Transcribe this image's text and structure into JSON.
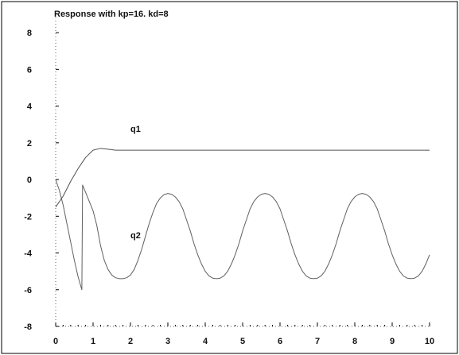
{
  "chart_data": {
    "type": "line",
    "title": "Response with kp=16. kd=8",
    "xlabel": "",
    "ylabel": "",
    "xlim": [
      0,
      10
    ],
    "ylim": [
      -8,
      9
    ],
    "x_ticks": [
      0,
      1,
      2,
      3,
      4,
      5,
      6,
      7,
      8,
      9,
      10
    ],
    "x_tick_labels": [
      "0",
      "1",
      "2",
      "3",
      "4",
      "5",
      "6",
      "7",
      "8",
      "9",
      "10"
    ],
    "y_ticks": [
      -8,
      -6,
      -4,
      -2,
      0,
      2,
      4,
      6,
      8
    ],
    "y_tick_labels": [
      "-8",
      "-6",
      "-4",
      "-2",
      "0",
      "2",
      "4",
      "6",
      "8"
    ],
    "grid": false,
    "legend": "none",
    "colors": {
      "axes": "#000000",
      "series_q1": "#333333",
      "series_q2": "#444444",
      "text": "#111111",
      "background": "#ffffff"
    },
    "series": [
      {
        "name": "q1",
        "x": [
          0,
          0.2,
          0.4,
          0.6,
          0.8,
          1.0,
          1.2,
          1.4,
          1.6,
          2.0,
          3,
          4,
          5,
          6,
          7,
          8,
          9,
          10
        ],
        "y": [
          -1.5,
          -0.9,
          -0.1,
          0.6,
          1.2,
          1.6,
          1.7,
          1.65,
          1.6,
          1.6,
          1.6,
          1.6,
          1.6,
          1.6,
          1.6,
          1.6,
          1.6,
          1.6
        ]
      },
      {
        "name": "q2",
        "x": [
          0,
          0.1,
          0.2,
          0.3,
          0.4,
          0.5,
          0.6,
          0.7,
          0.72,
          0.8,
          0.9,
          1.0,
          1.1,
          1.2,
          1.3,
          1.4,
          1.5,
          1.6,
          1.7,
          1.8,
          1.9,
          2.0,
          2.1,
          2.2,
          2.3,
          2.4,
          2.5,
          2.6,
          2.7,
          2.8,
          2.9,
          3.0,
          3.1,
          3.2,
          3.3,
          3.4,
          3.5,
          3.6,
          3.7,
          3.8,
          3.9,
          4.0,
          4.1,
          4.2,
          4.3,
          4.4,
          4.5,
          4.6,
          4.7,
          4.8,
          4.9,
          5.0,
          5.1,
          5.2,
          5.3,
          5.4,
          5.5,
          5.6,
          5.7,
          5.8,
          5.9,
          6.0,
          6.1,
          6.2,
          6.3,
          6.4,
          6.5,
          6.6,
          6.7,
          6.8,
          6.9,
          7.0,
          7.1,
          7.2,
          7.3,
          7.4,
          7.5,
          7.6,
          7.7,
          7.8,
          7.9,
          8.0,
          8.1,
          8.2,
          8.3,
          8.4,
          8.5,
          8.6,
          8.7,
          8.8,
          8.9,
          9.0,
          9.1,
          9.2,
          9.3,
          9.4,
          9.5,
          9.6,
          9.7,
          9.8,
          9.9,
          10.0
        ],
        "y": [
          0.0,
          -0.6,
          -1.4,
          -2.4,
          -3.4,
          -4.4,
          -5.3,
          -6.0,
          -0.3,
          -0.7,
          -1.2,
          -1.7,
          -2.5,
          -3.6,
          -4.4,
          -4.9,
          -5.2,
          -5.35,
          -5.4,
          -5.4,
          -5.35,
          -5.2,
          -4.9,
          -4.4,
          -3.8,
          -3.1,
          -2.4,
          -1.8,
          -1.3,
          -1.0,
          -0.82,
          -0.76,
          -0.8,
          -0.95,
          -1.2,
          -1.6,
          -2.2,
          -2.8,
          -3.5,
          -4.1,
          -4.6,
          -5.0,
          -5.25,
          -5.37,
          -5.4,
          -5.37,
          -5.25,
          -5.0,
          -4.6,
          -4.1,
          -3.5,
          -2.8,
          -2.2,
          -1.6,
          -1.2,
          -0.95,
          -0.8,
          -0.76,
          -0.8,
          -0.95,
          -1.2,
          -1.6,
          -2.2,
          -2.8,
          -3.5,
          -4.1,
          -4.6,
          -5.0,
          -5.25,
          -5.37,
          -5.4,
          -5.37,
          -5.25,
          -5.0,
          -4.6,
          -4.1,
          -3.5,
          -2.8,
          -2.2,
          -1.6,
          -1.2,
          -0.95,
          -0.8,
          -0.76,
          -0.8,
          -0.95,
          -1.2,
          -1.6,
          -2.2,
          -2.8,
          -3.5,
          -4.1,
          -4.6,
          -5.0,
          -5.25,
          -5.37,
          -5.4,
          -5.37,
          -5.25,
          -5.0,
          -4.6,
          -4.1
        ]
      }
    ],
    "annotations": [
      {
        "text": "q1",
        "x": 2.0,
        "y": 2.6
      },
      {
        "text": "q2",
        "x": 2.0,
        "y": -3.2
      }
    ]
  }
}
